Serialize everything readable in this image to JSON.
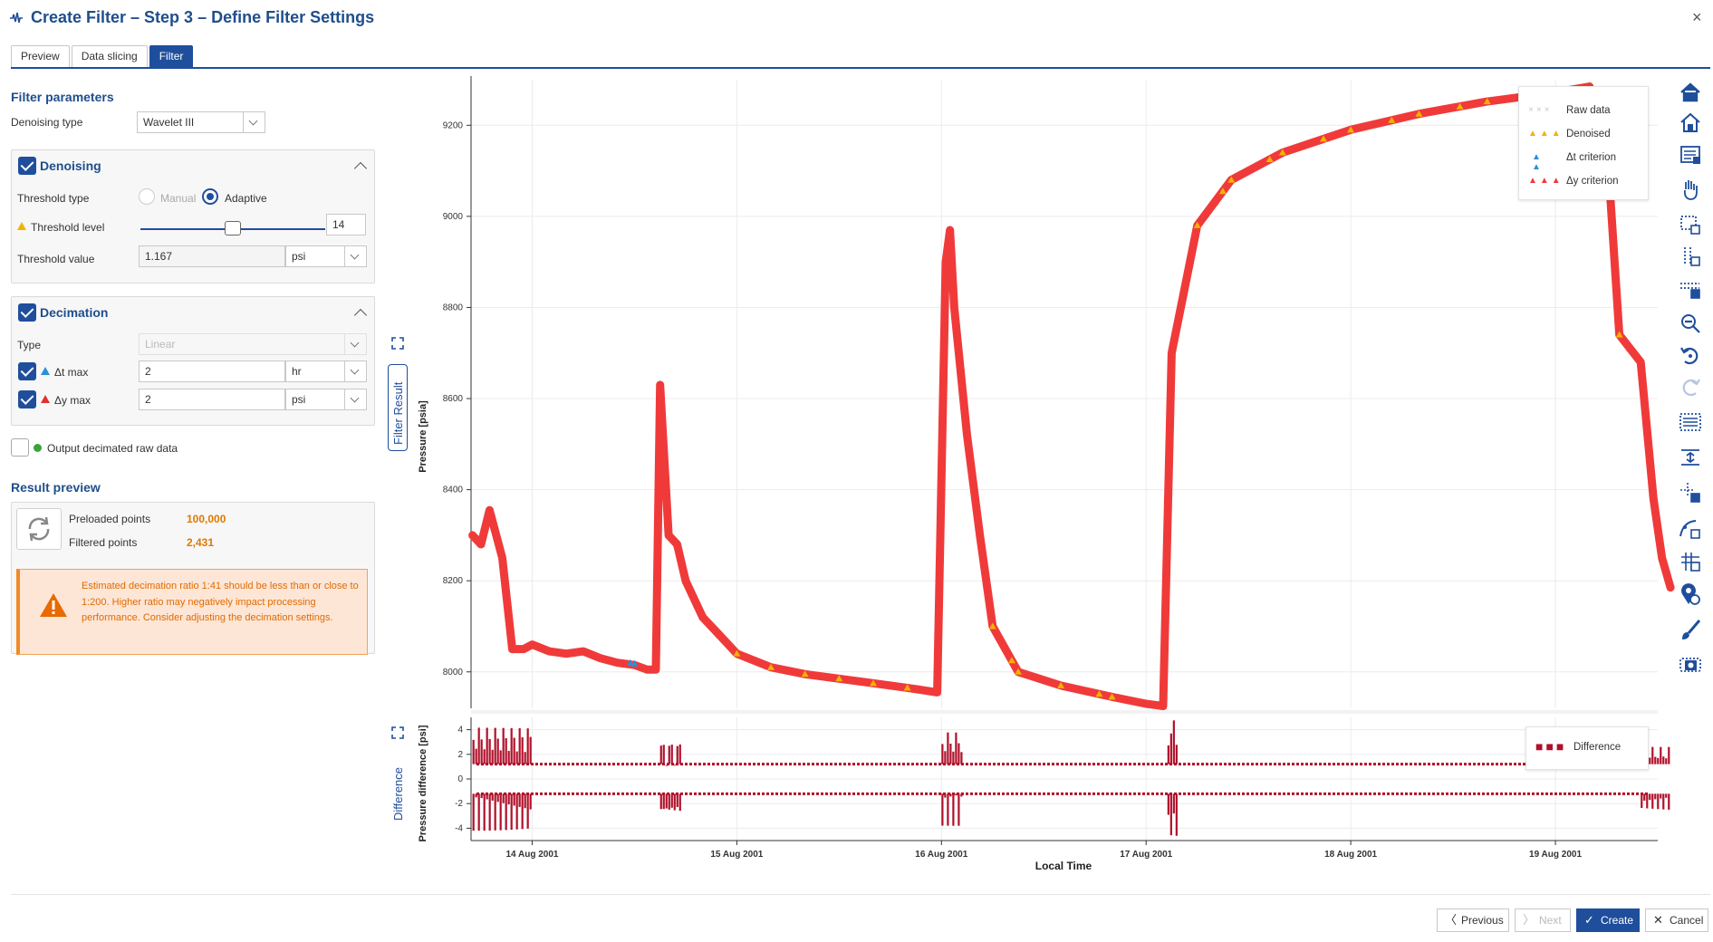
{
  "window": {
    "title": "Create Filter – Step 3 – Define Filter Settings",
    "close_glyph": "×"
  },
  "tabs": [
    {
      "label": "Preview",
      "active": false
    },
    {
      "label": "Data slicing",
      "active": false
    },
    {
      "label": "Filter",
      "active": true
    }
  ],
  "filter_parameters": {
    "title": "Filter parameters",
    "denoising_type_label": "Denoising type",
    "denoising_type_value": "Wavelet III"
  },
  "denoising": {
    "title": "Denoising",
    "checked": true,
    "threshold_type_label": "Threshold type",
    "manual_label": "Manual",
    "adaptive_label": "Adaptive",
    "selected": "Adaptive",
    "threshold_level_label": "Threshold level",
    "threshold_level_value": "14",
    "threshold_level_fraction": 0.5,
    "threshold_value_label": "Threshold value",
    "threshold_value": "1.167",
    "threshold_unit": "psi"
  },
  "decimation": {
    "title": "Decimation",
    "checked": true,
    "type_label": "Type",
    "type_value": "Linear",
    "dt_label": "Δt max",
    "dt_value": "2",
    "dt_unit": "hr",
    "dy_label": "Δy max",
    "dy_value": "2",
    "dy_unit": "psi"
  },
  "output_decimated": {
    "label": "Output decimated raw data",
    "checked": false
  },
  "result_preview": {
    "title": "Result preview",
    "preloaded_label": "Preloaded points",
    "preloaded_value": "100,000",
    "filtered_label": "Filtered points",
    "filtered_value": "2,431",
    "warning": "Estimated decimation ratio 1:41 should be less than or close to 1:200. Higher ratio may negatively impact processing performance. Consider adjusting the decimation settings."
  },
  "chart_panels": {
    "top_label": "Filter Result",
    "bottom_label": "Difference"
  },
  "chart_data": [
    {
      "type": "scatter",
      "title": "",
      "xlabel": "Local Time",
      "ylabel": "Pressure [psia]",
      "x_ticks": [
        "14 Aug 2001",
        "15 Aug 2001",
        "16 Aug 2001",
        "17 Aug 2001",
        "18 Aug 2001",
        "19 Aug 2001"
      ],
      "xlim": [
        "2001-08-13 16:50",
        "2001-08-19 12:00"
      ],
      "y_ticks": [
        8000,
        8200,
        8400,
        8600,
        8800,
        9000,
        9200
      ],
      "ylim": [
        7920,
        9300
      ],
      "grid": true,
      "legend_position": "top-right",
      "series": [
        {
          "name": "Raw data",
          "marker": "×",
          "color": "#c8c8c8"
        },
        {
          "name": "Denoised",
          "marker": "▲",
          "color": "#f0b400",
          "points": [
            [
              "2001-08-13 17:00",
              8300
            ],
            [
              "2001-08-13 18:00",
              8280
            ],
            [
              "2001-08-13 19:00",
              8355
            ],
            [
              "2001-08-13 20:30",
              8250
            ],
            [
              "2001-08-13 21:40",
              8050
            ],
            [
              "2001-08-13 23:00",
              8050
            ],
            [
              "2001-08-14 00:00",
              8060
            ],
            [
              "2001-08-14 02:00",
              8045
            ],
            [
              "2001-08-14 04:00",
              8040
            ],
            [
              "2001-08-14 06:00",
              8045
            ],
            [
              "2001-08-14 08:00",
              8030
            ],
            [
              "2001-08-14 10:00",
              8020
            ],
            [
              "2001-08-14 12:00",
              8015
            ],
            [
              "2001-08-14 13:30",
              8005
            ],
            [
              "2001-08-14 14:30",
              8005
            ],
            [
              "2001-08-14 15:00",
              8630
            ],
            [
              "2001-08-14 16:00",
              8300
            ],
            [
              "2001-08-14 17:00",
              8280
            ],
            [
              "2001-08-14 18:00",
              8200
            ],
            [
              "2001-08-14 20:00",
              8120
            ],
            [
              "2001-08-14 22:00",
              8080
            ],
            [
              "2001-08-15 00:00",
              8040
            ],
            [
              "2001-08-15 04:00",
              8010
            ],
            [
              "2001-08-15 08:00",
              7995
            ],
            [
              "2001-08-15 12:00",
              7985
            ],
            [
              "2001-08-15 16:00",
              7975
            ],
            [
              "2001-08-15 20:00",
              7965
            ],
            [
              "2001-08-15 23:30",
              7955
            ],
            [
              "2001-08-16 00:30",
              8900
            ],
            [
              "2001-08-16 01:00",
              8970
            ],
            [
              "2001-08-16 01:30",
              8800
            ],
            [
              "2001-08-16 03:00",
              8520
            ],
            [
              "2001-08-16 04:30",
              8300
            ],
            [
              "2001-08-16 06:00",
              8100
            ],
            [
              "2001-08-16 09:00",
              8000
            ],
            [
              "2001-08-16 14:00",
              7970
            ],
            [
              "2001-08-16 20:00",
              7945
            ],
            [
              "2001-08-17 00:00",
              7930
            ],
            [
              "2001-08-17 02:00",
              7925
            ],
            [
              "2001-08-17 03:00",
              8700
            ],
            [
              "2001-08-17 06:00",
              8980
            ],
            [
              "2001-08-17 10:00",
              9080
            ],
            [
              "2001-08-17 16:00",
              9140
            ],
            [
              "2001-08-18 00:00",
              9190
            ],
            [
              "2001-08-18 08:00",
              9225
            ],
            [
              "2001-08-18 16:00",
              9252
            ],
            [
              "2001-08-19 00:00",
              9272
            ],
            [
              "2001-08-19 04:00",
              9285
            ],
            [
              "2001-08-19 06:00",
              9170
            ],
            [
              "2001-08-19 07:30",
              8740
            ],
            [
              "2001-08-19 10:00",
              8680
            ],
            [
              "2001-08-19 11:30",
              8380
            ],
            [
              "2001-08-19 12:30",
              8250
            ],
            [
              "2001-08-19 13:30",
              8185
            ]
          ]
        },
        {
          "name": "Δt criterion",
          "marker": "▲",
          "color": "#2b8fd6"
        },
        {
          "name": "Δy criterion",
          "marker": "▲",
          "color": "#f03a3a"
        }
      ]
    },
    {
      "type": "bar",
      "title": "",
      "xlabel": "Local Time",
      "ylabel": "Pressure difference [psi]",
      "y_ticks": [
        -4,
        -2,
        0,
        2,
        4
      ],
      "ylim": [
        -5,
        5
      ],
      "grid": true,
      "legend_position": "top-right",
      "series": [
        {
          "name": "Difference",
          "color": "#b0102a",
          "baseline_positive": 1.2,
          "baseline_negative": -1.2
        }
      ]
    }
  ],
  "toolbar_icons": [
    "home-icon",
    "home-alt-icon",
    "legend-settings-icon",
    "pan-hand-icon",
    "box-select-icon",
    "vertical-select-icon",
    "horizontal-select-icon",
    "zoom-out-icon",
    "undo-icon",
    "redo-icon",
    "grid-settings-icon",
    "align-icon",
    "crosshair-icon",
    "curve-fit-icon",
    "grid-toggle-icon",
    "pin-search-icon",
    "brush-icon",
    "camera-icon"
  ],
  "footer": {
    "previous": "Previous",
    "next": "Next",
    "create": "Create",
    "cancel": "Cancel"
  },
  "colors": {
    "accent": "#1f4e9c",
    "warning": "#f08a24",
    "data_red": "#f03a3a",
    "data_yellow": "#f0b400",
    "diff_red": "#b0102a"
  }
}
